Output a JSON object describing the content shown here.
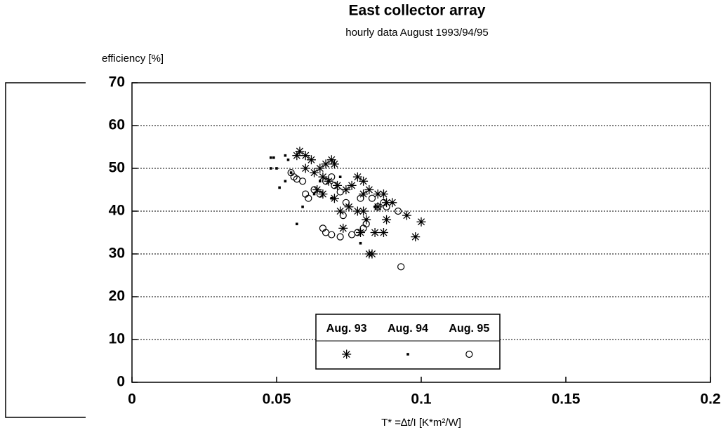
{
  "chart_data": {
    "type": "scatter",
    "title": "East collector array",
    "subtitle": "hourly data August 1993/94/95",
    "ylabel": "efficiency    [%]",
    "xlabel": "T* =∆t/I    [K*m²/W]",
    "xlim": [
      0,
      0.2
    ],
    "xticks": [
      0,
      0.05,
      0.1,
      0.15,
      0.2
    ],
    "ylim": [
      0,
      70
    ],
    "yticks": [
      0,
      10,
      20,
      30,
      40,
      50,
      60,
      70
    ],
    "grid": true,
    "legend": "bottom",
    "series": [
      {
        "name": "Aug. 93",
        "marker": "asterisk",
        "color": "#000000",
        "x": [
          0.057,
          0.058,
          0.06,
          0.062,
          0.065,
          0.067,
          0.069,
          0.07,
          0.066,
          0.068,
          0.07,
          0.072,
          0.074,
          0.076,
          0.078,
          0.08,
          0.08,
          0.082,
          0.085,
          0.087,
          0.088,
          0.09,
          0.08,
          0.081,
          0.084,
          0.087,
          0.088,
          0.095,
          0.1,
          0.098,
          0.082,
          0.083,
          0.078,
          0.073,
          0.075,
          0.079,
          0.06,
          0.063,
          0.064,
          0.066,
          0.071,
          0.085
        ],
        "values": [
          53,
          54,
          53,
          52,
          50,
          51,
          52,
          51,
          48,
          47,
          43,
          40,
          45,
          46,
          48,
          47,
          44,
          45,
          44,
          44,
          42,
          42,
          40,
          38,
          35,
          35,
          38,
          39,
          37.5,
          34,
          30,
          30,
          40,
          36,
          41,
          35,
          50,
          49,
          45,
          44,
          46,
          41
        ]
      },
      {
        "name": "Aug. 94",
        "marker": "dot",
        "color": "#000000",
        "x": [
          0.048,
          0.049,
          0.053,
          0.054,
          0.048,
          0.05,
          0.051,
          0.053,
          0.057,
          0.059,
          0.063,
          0.069,
          0.071,
          0.079,
          0.084,
          0.072,
          0.055,
          0.065
        ],
        "values": [
          52.5,
          52.5,
          53,
          52,
          50,
          50,
          45.5,
          47,
          37,
          41,
          44,
          43,
          46,
          32.5,
          41,
          48,
          49,
          47
        ]
      },
      {
        "name": "Aug. 95",
        "marker": "circle",
        "color": "#000000",
        "x": [
          0.055,
          0.056,
          0.057,
          0.059,
          0.06,
          0.061,
          0.063,
          0.065,
          0.067,
          0.069,
          0.07,
          0.072,
          0.074,
          0.073,
          0.066,
          0.067,
          0.069,
          0.072,
          0.076,
          0.078,
          0.08,
          0.081,
          0.085,
          0.087,
          0.088,
          0.092,
          0.093,
          0.079,
          0.083
        ],
        "values": [
          49,
          48,
          47.5,
          47,
          44,
          43,
          45,
          44,
          47,
          48,
          46,
          44.5,
          42,
          39,
          36,
          35,
          34.5,
          34,
          34.5,
          35,
          36,
          37,
          41,
          42,
          41,
          40,
          27,
          43,
          43
        ]
      }
    ]
  }
}
